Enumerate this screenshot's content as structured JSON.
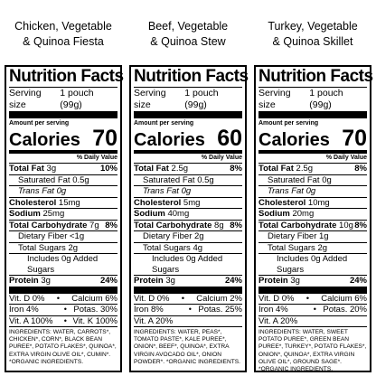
{
  "labels": [
    {
      "product": [
        "Chicken, Vegetable",
        "& Quinoa Fiesta"
      ],
      "title": "Nutrition Facts",
      "serving_label": "Serving size",
      "serving_value": "1 pouch (99g)",
      "amount_per_serving": "Amount per serving",
      "calories_label": "Calories",
      "calories_value": "70",
      "dv_header": "% Daily Value",
      "total_fat": {
        "label": "Total Fat",
        "amount": "3g",
        "dv": "10%"
      },
      "sat_fat": "Saturated Fat 0.5g",
      "trans_fat": "Trans Fat 0g",
      "cholesterol": {
        "label": "Cholesterol",
        "amount": "15mg"
      },
      "sodium": {
        "label": "Sodium",
        "amount": "25mg"
      },
      "total_carb": {
        "label": "Total Carbohydrate",
        "amount": "7g",
        "dv": "8%"
      },
      "fiber": "Dietary Fiber <1g",
      "sugars": "Total Sugars 2g",
      "added_sugars": "Includes 0g Added Sugars",
      "protein": {
        "label": "Protein",
        "amount": "3g",
        "dv": "24%"
      },
      "vitamins": [
        [
          "Vit. D 0%",
          "Calcium 6%"
        ],
        [
          "Iron 4%",
          "Potas. 30%"
        ],
        [
          "Vit. A 100%",
          "Vit. K 100%"
        ]
      ],
      "ingredients": "INGREDIENTS: WATER, CARROTS*, CHICKEN*, CORN*, BLACK BEAN PUREE*, POTATO FLAKES*, QUINOA*, EXTRA VIRGIN OLIVE OIL*, CUMIN*. *ORGANIC INGREDIENTS."
    },
    {
      "product": [
        "Beef, Vegetable",
        "& Quinoa Stew"
      ],
      "title": "Nutrition Facts",
      "serving_label": "Serving size",
      "serving_value": "1 pouch (99g)",
      "amount_per_serving": "Amount per serving",
      "calories_label": "Calories",
      "calories_value": "60",
      "dv_header": "% Daily Value",
      "total_fat": {
        "label": "Total Fat",
        "amount": "2.5g",
        "dv": "8%"
      },
      "sat_fat": "Saturated Fat 0.5g",
      "trans_fat": "Trans Fat 0g",
      "cholesterol": {
        "label": "Cholesterol",
        "amount": "5mg"
      },
      "sodium": {
        "label": "Sodium",
        "amount": "40mg"
      },
      "total_carb": {
        "label": "Total Carbohydrate",
        "amount": "8g",
        "dv": "8%"
      },
      "fiber": "Dietary Fiber 2g",
      "sugars": "Total Sugars 4g",
      "added_sugars": "Includes 0g Added Sugars",
      "protein": {
        "label": "Protein",
        "amount": "3g",
        "dv": "24%"
      },
      "vitamins": [
        [
          "Vit. D 0%",
          "Calcium 2%"
        ],
        [
          "Iron 8%",
          "Potas. 25%"
        ],
        [
          "Vit. A 20%",
          ""
        ]
      ],
      "ingredients": "INGREDIENTS: WATER, PEAS*, TOMATO PASTE*, KALE PUREE*, ONION*, BEEF*, QUINOA*, EXTRA VIRGIN AVOCADO OIL*, ONION POWDER*. *ORGANIC INGREDIENTS."
    },
    {
      "product": [
        "Turkey, Vegetable",
        "& Quinoa Skillet"
      ],
      "title": "Nutrition Facts",
      "serving_label": "Serving size",
      "serving_value": "1 pouch (99g)",
      "amount_per_serving": "Amount per serving",
      "calories_label": "Calories",
      "calories_value": "70",
      "dv_header": "% Daily Value",
      "total_fat": {
        "label": "Total Fat",
        "amount": "2.5g",
        "dv": "8%"
      },
      "sat_fat": "Saturated Fat 0g",
      "trans_fat": "Trans Fat 0g",
      "cholesterol": {
        "label": "Cholesterol",
        "amount": "10mg"
      },
      "sodium": {
        "label": "Sodium",
        "amount": "20mg"
      },
      "total_carb": {
        "label": "Total Carbohydrate",
        "amount": "10g",
        "dv": "8%"
      },
      "fiber": "Dietary Fiber 1g",
      "sugars": "Total Sugars 2g",
      "added_sugars": "Includes 0g Added Sugars",
      "protein": {
        "label": "Protein",
        "amount": "3g",
        "dv": "24%"
      },
      "vitamins": [
        [
          "Vit. D 0%",
          "Calcium 6%"
        ],
        [
          "Iron 4%",
          "Potas. 20%"
        ],
        [
          "Vit. A 20%",
          ""
        ]
      ],
      "ingredients": "INGREDIENTS: WATER, SWEET POTATO PUREE*, GREEN BEAN PUREE*, TURKEY*, POTATO FLAKES*, ONION*, QUINOA*, EXTRA VIRGIN OLIVE OIL*, GROUND SAGE*. *ORGANIC INGREDIENTS."
    }
  ]
}
